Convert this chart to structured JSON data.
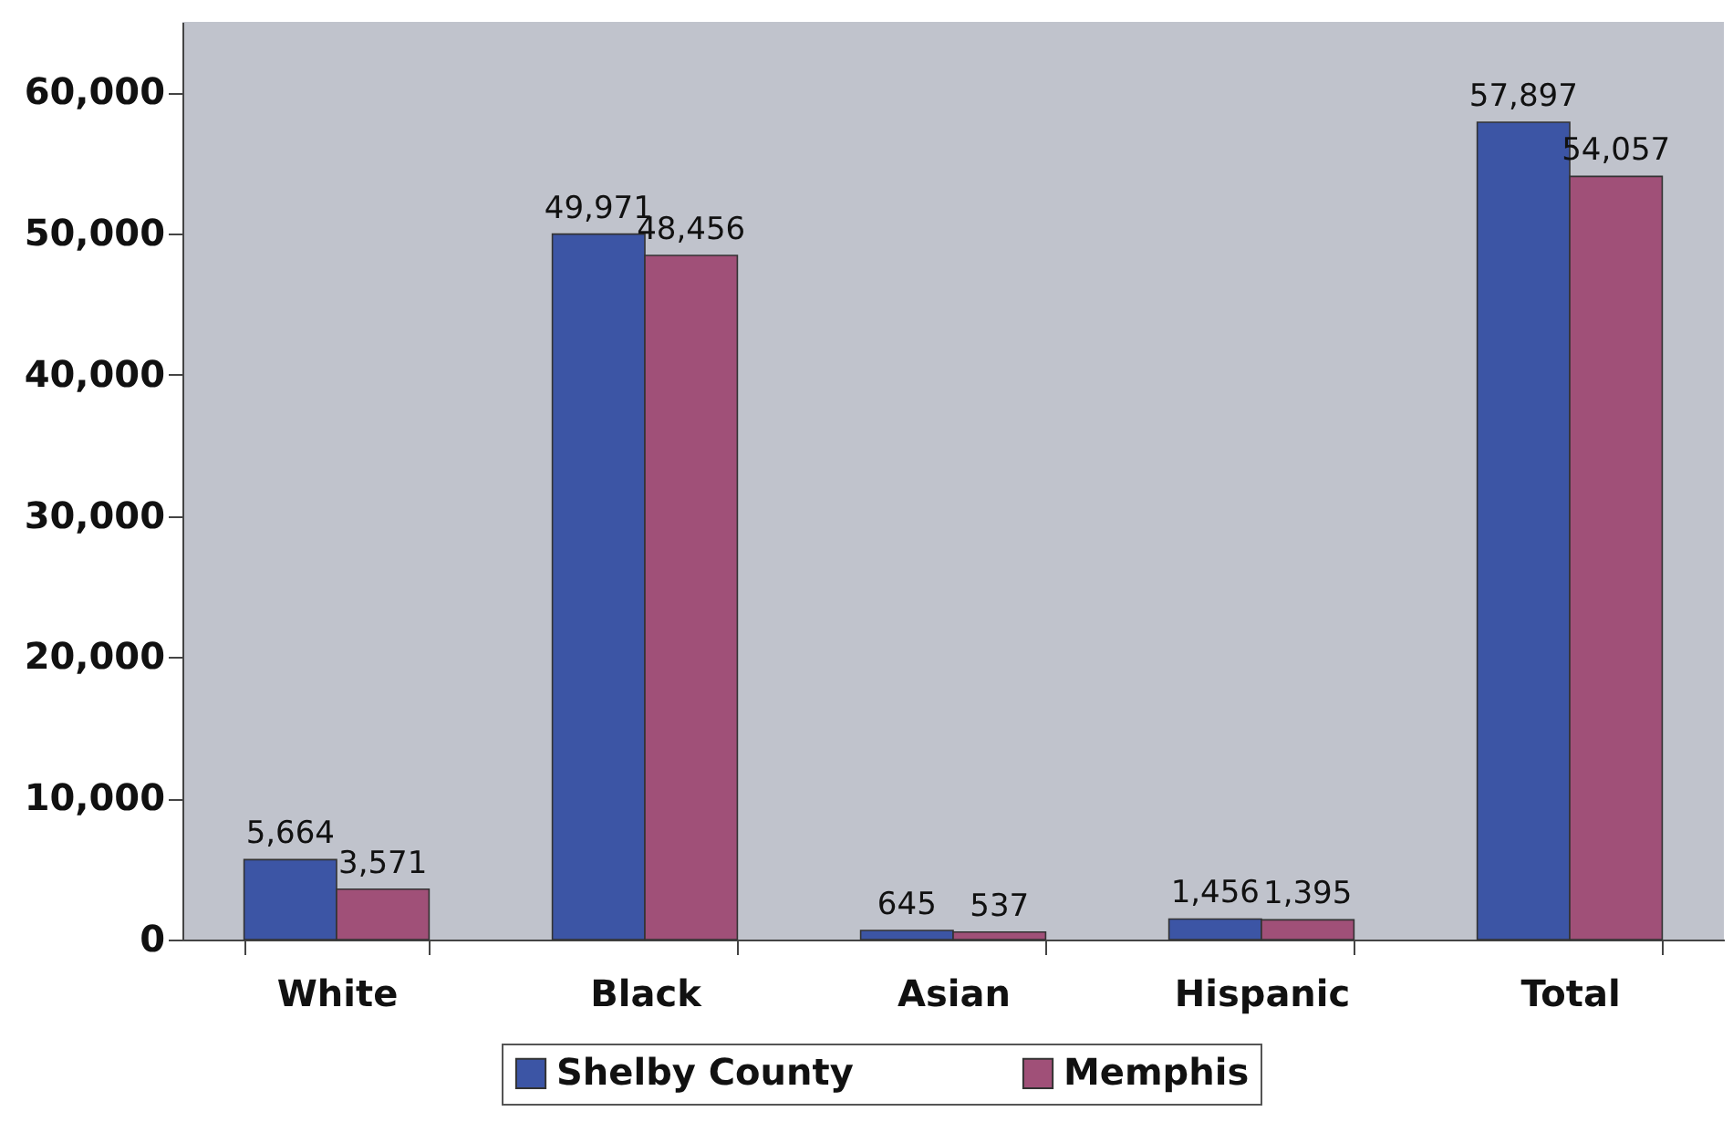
{
  "chart_data": {
    "type": "bar",
    "categories": [
      "White",
      "Black",
      "Asian",
      "Hispanic",
      "Total"
    ],
    "series": [
      {
        "name": "Shelby County",
        "color": "#3c55a5",
        "values": [
          5664,
          49971,
          645,
          1456,
          57897
        ],
        "value_labels": [
          "5,664",
          "49,971",
          "645",
          "1,456",
          "57,897"
        ]
      },
      {
        "name": "Memphis",
        "color": "#a05078",
        "values": [
          3571,
          48456,
          537,
          1395,
          54057
        ],
        "value_labels": [
          "3,571",
          "48,456",
          "537",
          "1,395",
          "54,057"
        ]
      }
    ],
    "ylim": [
      0,
      65000
    ],
    "yticks": [
      0,
      {
        "value": 10000,
        "label": "10,000"
      },
      {
        "value": 20000,
        "label": "20,000"
      },
      {
        "value": 30000,
        "label": "30,000"
      },
      {
        "value": 40000,
        "label": "40,000"
      },
      {
        "value": 50000,
        "label": "50,000"
      },
      {
        "value": 60000,
        "label": "60,000"
      }
    ],
    "grid": false,
    "legend": "bottom"
  }
}
